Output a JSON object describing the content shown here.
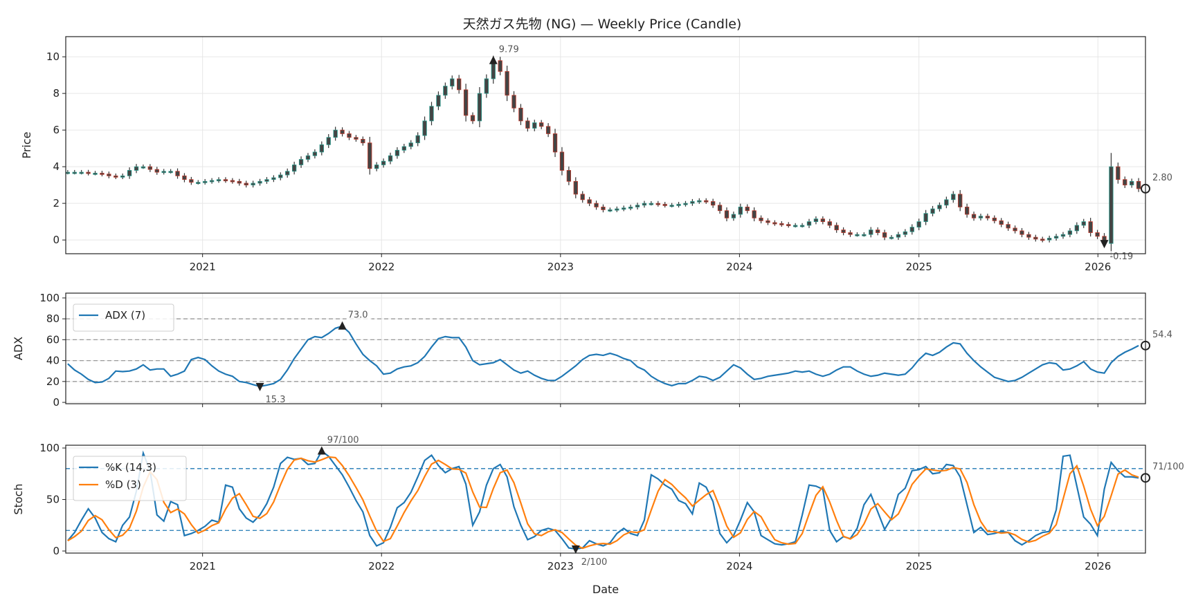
{
  "title": "天然ガス先物 (NG) — Weekly Price (Candle)",
  "colors": {
    "adx": "#1f77b4",
    "k": "#1f77b4",
    "d": "#ff7f0e",
    "candle_body": "#444444",
    "candle_up_edge": "#2a9d8f",
    "candle_down_edge": "#c0392b",
    "ref_adx": "#999999",
    "ref_stoch": "#1f77b4",
    "grid": "#e6e6e6",
    "marker": "#222222"
  },
  "chart_data": {
    "type": "multi-panel",
    "xlabel": "Date",
    "x_range": [
      "2020-03-28",
      "2026-04-08"
    ],
    "x_ticks": [
      {
        "date": "2021-01-01",
        "label": "2021"
      },
      {
        "date": "2022-01-01",
        "label": "2022"
      },
      {
        "date": "2023-01-01",
        "label": "2023"
      },
      {
        "date": "2024-01-01",
        "label": "2024"
      },
      {
        "date": "2025-01-01",
        "label": "2025"
      },
      {
        "date": "2026-01-01",
        "label": "2026"
      }
    ],
    "grid": true,
    "row_columns": [
      "date",
      "close",
      "adx",
      "stoch_k"
    ],
    "rows": [
      [
        "2020-04-01",
        3.7,
        37,
        10
      ],
      [
        "2020-04-15",
        3.7,
        31,
        18
      ],
      [
        "2020-04-29",
        3.7,
        27,
        30
      ],
      [
        "2020-05-13",
        3.65,
        22,
        41
      ],
      [
        "2020-05-27",
        3.65,
        19,
        32
      ],
      [
        "2020-06-10",
        3.6,
        19.5,
        18
      ],
      [
        "2020-06-24",
        3.5,
        23,
        12
      ],
      [
        "2020-07-08",
        3.45,
        30,
        9
      ],
      [
        "2020-07-22",
        3.5,
        29.5,
        25
      ],
      [
        "2020-08-05",
        3.8,
        30,
        33
      ],
      [
        "2020-08-19",
        4.0,
        32,
        58
      ],
      [
        "2020-09-02",
        4.0,
        36,
        95
      ],
      [
        "2020-09-16",
        3.85,
        31,
        78
      ],
      [
        "2020-09-30",
        3.7,
        32,
        35
      ],
      [
        "2020-10-14",
        3.75,
        32,
        29
      ],
      [
        "2020-10-28",
        3.75,
        25,
        48
      ],
      [
        "2020-11-11",
        3.5,
        27,
        45
      ],
      [
        "2020-11-25",
        3.3,
        30,
        15
      ],
      [
        "2020-12-09",
        3.15,
        41,
        17
      ],
      [
        "2020-12-23",
        3.15,
        43,
        20
      ],
      [
        "2021-01-06",
        3.2,
        41,
        24
      ],
      [
        "2021-01-20",
        3.25,
        35,
        30
      ],
      [
        "2021-02-03",
        3.3,
        30,
        28
      ],
      [
        "2021-02-17",
        3.25,
        27,
        64
      ],
      [
        "2021-03-03",
        3.2,
        25,
        62
      ],
      [
        "2021-03-17",
        3.1,
        20,
        41
      ],
      [
        "2021-03-31",
        3.0,
        19,
        32
      ],
      [
        "2021-04-14",
        3.1,
        17,
        28
      ],
      [
        "2021-04-28",
        3.2,
        15.3,
        35
      ],
      [
        "2021-05-12",
        3.3,
        16.5,
        46
      ],
      [
        "2021-05-26",
        3.4,
        18,
        62
      ],
      [
        "2021-06-09",
        3.55,
        22,
        85
      ],
      [
        "2021-06-23",
        3.75,
        31,
        91
      ],
      [
        "2021-07-07",
        4.1,
        42,
        89
      ],
      [
        "2021-07-21",
        4.4,
        51,
        90
      ],
      [
        "2021-08-04",
        4.6,
        60,
        84
      ],
      [
        "2021-08-18",
        4.8,
        63,
        85
      ],
      [
        "2021-09-01",
        5.2,
        62,
        97
      ],
      [
        "2021-09-15",
        5.6,
        66,
        92
      ],
      [
        "2021-09-29",
        6.0,
        71,
        83
      ],
      [
        "2021-10-13",
        5.8,
        73.0,
        74
      ],
      [
        "2021-10-27",
        5.6,
        67,
        62
      ],
      [
        "2021-11-10",
        5.5,
        56,
        49
      ],
      [
        "2021-11-24",
        5.3,
        46,
        38
      ],
      [
        "2021-12-08",
        3.9,
        40,
        15
      ],
      [
        "2021-12-22",
        4.1,
        35,
        5
      ],
      [
        "2022-01-05",
        4.3,
        27,
        8
      ],
      [
        "2022-01-19",
        4.6,
        28,
        23
      ],
      [
        "2022-02-02",
        4.9,
        32,
        42
      ],
      [
        "2022-02-16",
        5.1,
        34,
        47
      ],
      [
        "2022-03-02",
        5.3,
        35,
        57
      ],
      [
        "2022-03-16",
        5.7,
        38,
        72
      ],
      [
        "2022-03-30",
        6.5,
        44,
        88
      ],
      [
        "2022-04-13",
        7.3,
        53,
        93
      ],
      [
        "2022-04-27",
        7.9,
        61,
        83
      ],
      [
        "2022-05-11",
        8.4,
        63,
        76
      ],
      [
        "2022-05-25",
        8.8,
        62,
        80
      ],
      [
        "2022-06-08",
        8.2,
        62,
        82
      ],
      [
        "2022-06-22",
        6.8,
        53,
        65
      ],
      [
        "2022-07-06",
        6.5,
        40,
        25
      ],
      [
        "2022-07-20",
        8.0,
        36,
        38
      ],
      [
        "2022-08-03",
        8.8,
        37,
        64
      ],
      [
        "2022-08-17",
        9.79,
        38,
        80
      ],
      [
        "2022-08-31",
        9.2,
        41,
        84
      ],
      [
        "2022-09-14",
        7.9,
        36,
        72
      ],
      [
        "2022-09-28",
        7.2,
        31,
        43
      ],
      [
        "2022-10-12",
        6.5,
        28,
        25
      ],
      [
        "2022-10-26",
        6.1,
        30,
        11
      ],
      [
        "2022-11-09",
        6.4,
        26,
        14
      ],
      [
        "2022-11-23",
        6.2,
        23,
        20
      ],
      [
        "2022-12-07",
        5.8,
        21,
        22
      ],
      [
        "2022-12-21",
        4.8,
        21,
        20
      ],
      [
        "2023-01-04",
        3.8,
        25,
        12
      ],
      [
        "2023-01-18",
        3.2,
        30,
        3
      ],
      [
        "2023-02-01",
        2.5,
        35,
        2
      ],
      [
        "2023-02-15",
        2.2,
        41,
        3
      ],
      [
        "2023-03-01",
        2.0,
        45,
        10
      ],
      [
        "2023-03-15",
        1.8,
        46,
        7
      ],
      [
        "2023-03-29",
        1.65,
        45,
        5
      ],
      [
        "2023-04-12",
        1.65,
        47,
        8
      ],
      [
        "2023-04-26",
        1.7,
        45,
        17
      ],
      [
        "2023-05-10",
        1.75,
        42,
        22
      ],
      [
        "2023-05-24",
        1.8,
        40,
        17
      ],
      [
        "2023-06-07",
        1.9,
        34,
        15
      ],
      [
        "2023-06-21",
        2.0,
        31,
        30
      ],
      [
        "2023-07-05",
        2.0,
        25,
        74
      ],
      [
        "2023-07-19",
        1.95,
        21,
        70
      ],
      [
        "2023-08-02",
        1.9,
        18,
        64
      ],
      [
        "2023-08-16",
        1.9,
        16,
        60
      ],
      [
        "2023-08-30",
        1.95,
        18,
        49
      ],
      [
        "2023-09-13",
        2.0,
        18,
        46
      ],
      [
        "2023-09-27",
        2.1,
        21,
        36
      ],
      [
        "2023-10-11",
        2.15,
        25,
        66
      ],
      [
        "2023-10-25",
        2.1,
        24,
        62
      ],
      [
        "2023-11-08",
        1.9,
        21,
        48
      ],
      [
        "2023-11-22",
        1.6,
        24,
        17
      ],
      [
        "2023-12-06",
        1.2,
        30,
        8
      ],
      [
        "2023-12-20",
        1.4,
        36,
        15
      ],
      [
        "2024-01-03",
        1.8,
        33,
        30
      ],
      [
        "2024-01-17",
        1.6,
        27,
        47
      ],
      [
        "2024-01-31",
        1.2,
        22,
        38
      ],
      [
        "2024-02-14",
        1.05,
        23,
        15
      ],
      [
        "2024-02-28",
        0.95,
        25,
        11
      ],
      [
        "2024-03-13",
        0.9,
        26,
        7
      ],
      [
        "2024-03-27",
        0.85,
        27,
        6
      ],
      [
        "2024-04-10",
        0.8,
        28,
        7
      ],
      [
        "2024-04-24",
        0.8,
        30,
        9
      ],
      [
        "2024-05-08",
        0.8,
        29,
        35
      ],
      [
        "2024-05-22",
        1.0,
        30,
        64
      ],
      [
        "2024-06-05",
        1.15,
        27,
        63
      ],
      [
        "2024-06-19",
        1.0,
        25,
        60
      ],
      [
        "2024-07-03",
        0.8,
        27,
        20
      ],
      [
        "2024-07-17",
        0.55,
        31,
        9
      ],
      [
        "2024-07-31",
        0.4,
        34,
        14
      ],
      [
        "2024-08-14",
        0.3,
        34,
        12
      ],
      [
        "2024-08-28",
        0.3,
        30,
        22
      ],
      [
        "2024-09-11",
        0.3,
        27,
        45
      ],
      [
        "2024-09-25",
        0.55,
        25,
        55
      ],
      [
        "2024-10-09",
        0.4,
        26,
        38
      ],
      [
        "2024-10-23",
        0.15,
        28,
        21
      ],
      [
        "2024-11-06",
        0.15,
        27,
        32
      ],
      [
        "2024-11-20",
        0.3,
        26,
        55
      ],
      [
        "2024-12-04",
        0.45,
        27,
        61
      ],
      [
        "2024-12-18",
        0.7,
        33,
        78
      ],
      [
        "2025-01-01",
        1.0,
        41,
        79
      ],
      [
        "2025-01-15",
        1.45,
        47,
        82
      ],
      [
        "2025-01-29",
        1.7,
        45,
        75
      ],
      [
        "2025-02-12",
        1.9,
        48,
        76
      ],
      [
        "2025-02-26",
        2.2,
        53,
        84
      ],
      [
        "2025-03-12",
        2.5,
        57,
        83
      ],
      [
        "2025-03-26",
        1.8,
        56,
        72
      ],
      [
        "2025-04-09",
        1.4,
        47,
        45
      ],
      [
        "2025-04-23",
        1.2,
        40,
        18
      ],
      [
        "2025-05-07",
        1.3,
        34,
        23
      ],
      [
        "2025-05-21",
        1.2,
        29,
        16
      ],
      [
        "2025-06-04",
        1.05,
        24,
        17
      ],
      [
        "2025-06-18",
        0.85,
        22,
        19
      ],
      [
        "2025-07-02",
        0.65,
        20,
        18
      ],
      [
        "2025-07-16",
        0.5,
        21,
        10
      ],
      [
        "2025-07-30",
        0.3,
        24,
        6
      ],
      [
        "2025-08-13",
        0.15,
        28,
        10
      ],
      [
        "2025-08-27",
        0.05,
        32,
        15
      ],
      [
        "2025-09-10",
        0.0,
        36,
        18
      ],
      [
        "2025-09-24",
        0.1,
        38,
        19
      ],
      [
        "2025-10-08",
        0.2,
        37,
        40
      ],
      [
        "2025-10-22",
        0.3,
        31,
        92
      ],
      [
        "2025-11-05",
        0.5,
        32,
        93
      ],
      [
        "2025-11-19",
        0.8,
        35,
        63
      ],
      [
        "2025-12-03",
        1.0,
        39,
        33
      ],
      [
        "2025-12-17",
        0.4,
        32,
        26
      ],
      [
        "2025-12-31",
        0.2,
        29,
        15
      ],
      [
        "2026-01-14",
        -0.19,
        28,
        60
      ],
      [
        "2026-01-28",
        4.0,
        38,
        86
      ],
      [
        "2026-02-11",
        3.3,
        44,
        78
      ],
      [
        "2026-02-25",
        3.0,
        48,
        72
      ],
      [
        "2026-03-11",
        3.2,
        51,
        72
      ],
      [
        "2026-03-25",
        2.8,
        54.4,
        71
      ]
    ],
    "panels": [
      {
        "id": "price",
        "type": "candlestick",
        "ylabel": "Price",
        "ylim": [
          -0.75,
          11.1
        ],
        "yticks": [
          0,
          2,
          4,
          6,
          8,
          10
        ],
        "annotations": [
          {
            "date": "2022-08-17",
            "value": 9.79,
            "label": "9.79",
            "marker": "triangle-up"
          },
          {
            "date": "2026-01-14",
            "value": -0.19,
            "label": "-0.19",
            "marker": "triangle-down"
          },
          {
            "date": "2026-03-25",
            "value": 2.8,
            "label": "2.80",
            "marker": "circle-last"
          }
        ]
      },
      {
        "id": "adx",
        "type": "line",
        "ylabel": "ADX",
        "ylim": [
          -1.3,
          104.6
        ],
        "yticks": [
          0,
          20,
          40,
          60,
          80,
          100
        ],
        "ref_lines": [
          20,
          40,
          60,
          80
        ],
        "legend": {
          "placement": "upper-left",
          "entries": [
            "ADX (7)"
          ]
        },
        "annotations": [
          {
            "date": "2021-10-13",
            "value": 73.0,
            "label": "73.0",
            "marker": "triangle-up"
          },
          {
            "date": "2021-04-28",
            "value": 15.3,
            "label": "15.3",
            "marker": "triangle-down"
          },
          {
            "date": "2026-03-25",
            "value": 54.4,
            "label": "54.4",
            "marker": "circle-last"
          }
        ]
      },
      {
        "id": "stoch",
        "type": "line",
        "ylabel": "Stoch",
        "ylim": [
          -2,
          102.7
        ],
        "yticks": [
          0,
          50,
          100
        ],
        "ref_lines": [
          20,
          80
        ],
        "d_period": 3,
        "legend": {
          "placement": "upper-left",
          "entries": [
            "%K (14,3)",
            "%D (3)"
          ]
        },
        "annotations": [
          {
            "date": "2021-09-01",
            "value": 97,
            "label": "97/100",
            "marker": "triangle-up"
          },
          {
            "date": "2023-02-01",
            "value": 2,
            "label": "2/100",
            "marker": "triangle-down"
          },
          {
            "date": "2026-03-25",
            "value": 71,
            "label": "71/100",
            "marker": "circle-last"
          }
        ]
      }
    ]
  }
}
